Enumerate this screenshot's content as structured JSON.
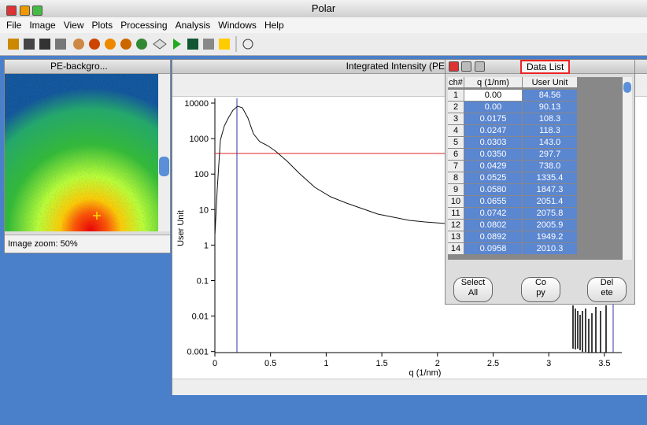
{
  "window": {
    "title": "Polar"
  },
  "menu": [
    "File",
    "Image",
    "View",
    "Plots",
    "Processing",
    "Analysis",
    "Windows",
    "Help"
  ],
  "image_panel": {
    "title": "PE-backgro...",
    "zoom": "Image zoom: 50%"
  },
  "plot_panel": {
    "title": "Integrated Intensity  (PE",
    "ylabel": "User Unit",
    "xlabel": "q (1/nm)",
    "yticks": [
      "10000",
      "1000",
      "100",
      "10",
      "1",
      "0.1",
      "0.01",
      "0.001"
    ],
    "xticks": [
      "0",
      "0.5",
      "1",
      "1.5",
      "2",
      "2.5",
      "3",
      "3.5"
    ]
  },
  "data_list": {
    "title": "Data List",
    "columns": [
      "ch#",
      "q (1/nm)",
      "User Unit"
    ],
    "rows": [
      [
        "1",
        "0.00",
        "84.56"
      ],
      [
        "2",
        "0.00",
        "90.13"
      ],
      [
        "3",
        "0.0175",
        "108.3"
      ],
      [
        "4",
        "0.0247",
        "118.3"
      ],
      [
        "5",
        "0.0303",
        "143.0"
      ],
      [
        "6",
        "0.0350",
        "297.7"
      ],
      [
        "7",
        "0.0429",
        "738.0"
      ],
      [
        "8",
        "0.0525",
        "1335.4"
      ],
      [
        "9",
        "0.0580",
        "1847.3"
      ],
      [
        "10",
        "0.0655",
        "2051.4"
      ],
      [
        "11",
        "0.0742",
        "2075.8"
      ],
      [
        "12",
        "0.0802",
        "2005.9"
      ],
      [
        "13",
        "0.0892",
        "1949.2"
      ],
      [
        "14",
        "0.0958",
        "2010.3"
      ]
    ],
    "buttons": [
      [
        "Select",
        "All"
      ],
      [
        "Co",
        "py"
      ],
      [
        "Del",
        "ete"
      ]
    ]
  }
}
